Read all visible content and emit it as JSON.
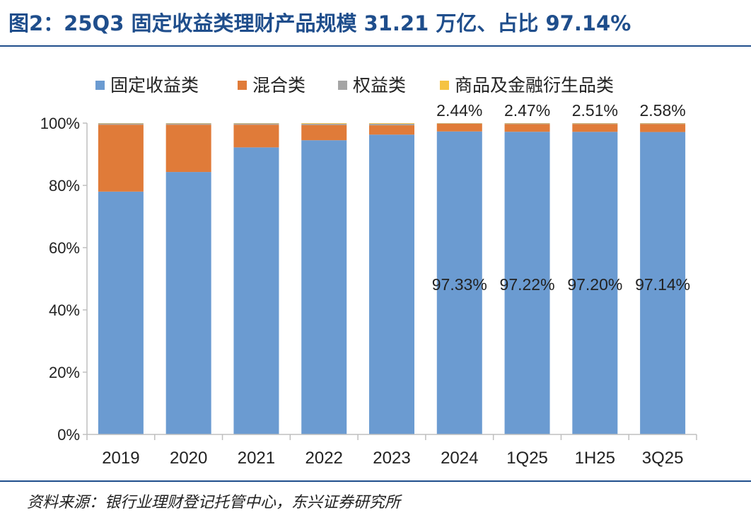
{
  "figure_title": "图2：25Q3 固定收益类理财产品规模 31.21 万亿、占比 97.14%",
  "source_note": "资料来源：银行业理财登记托管中心，东兴证券研究所",
  "chart_data": {
    "type": "bar",
    "stacked": true,
    "percent_stacked": true,
    "title": "",
    "xlabel": "",
    "ylabel": "",
    "ylim": [
      0,
      100
    ],
    "y_ticks": [
      "0%",
      "20%",
      "40%",
      "60%",
      "80%",
      "100%"
    ],
    "legend_position": "top",
    "categories": [
      "2019",
      "2020",
      "2021",
      "2022",
      "2023",
      "2024",
      "1Q25",
      "1H25",
      "3Q25"
    ],
    "series": [
      {
        "name": "固定收益类",
        "color": "#6b9bd1",
        "values": [
          78.0,
          84.3,
          92.2,
          94.5,
          96.3,
          97.33,
          97.22,
          97.2,
          97.14
        ]
      },
      {
        "name": "混合类",
        "color": "#e07b39",
        "values": [
          21.5,
          15.2,
          7.3,
          4.9,
          3.0,
          2.44,
          2.47,
          2.51,
          2.58
        ]
      },
      {
        "name": "权益类",
        "color": "#a5a5a5",
        "values": [
          0.4,
          0.4,
          0.4,
          0.4,
          0.5,
          0.13,
          0.2,
          0.18,
          0.17
        ]
      },
      {
        "name": "商品及金融衍生品类",
        "color": "#f5c342",
        "values": [
          0.1,
          0.1,
          0.1,
          0.2,
          0.2,
          0.1,
          0.11,
          0.11,
          0.11
        ]
      }
    ],
    "data_labels": {
      "fixed_income": [
        "",
        "",
        "",
        "",
        "",
        "97.33%",
        "97.22%",
        "97.20%",
        "97.14%"
      ],
      "mixed": [
        "",
        "",
        "",
        "",
        "",
        "2.44%",
        "2.47%",
        "2.51%",
        "2.58%"
      ]
    }
  }
}
